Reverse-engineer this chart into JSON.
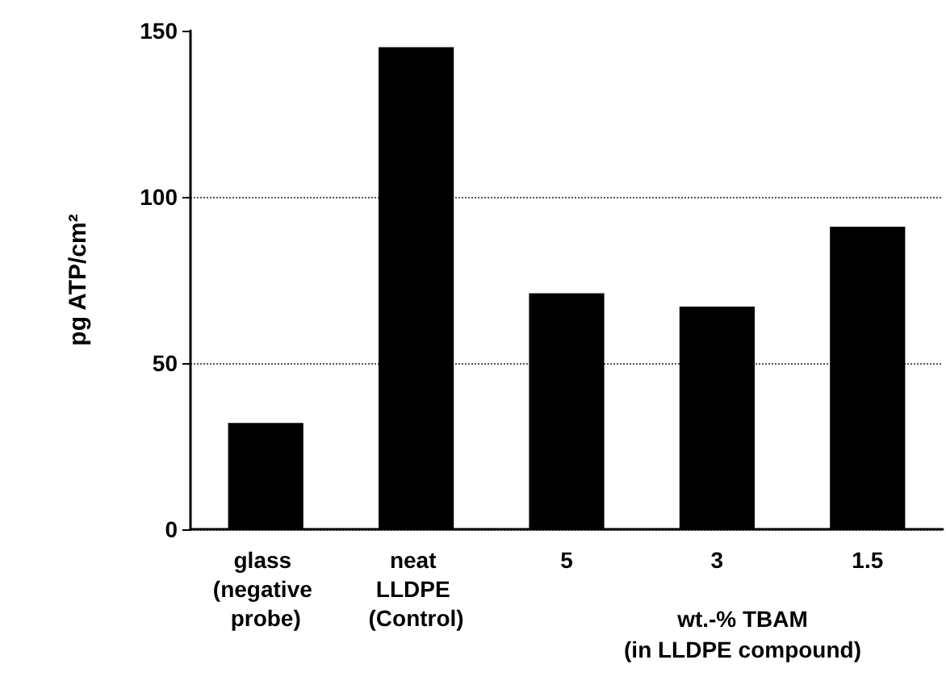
{
  "chart_data": {
    "type": "bar",
    "ylabel": "pg ATP/cm²",
    "xlabel": "wt.-% TBAM (in LLDPE compound)",
    "categories": [
      "glass (negative probe)",
      "neat LLDPE (Control)",
      "5",
      "3",
      "1.5"
    ],
    "values": [
      32,
      145,
      71,
      67,
      91
    ],
    "color": "#000000",
    "ylim": [
      0,
      150
    ],
    "yticks": [
      0,
      50,
      100,
      150
    ],
    "grid": "y"
  }
}
